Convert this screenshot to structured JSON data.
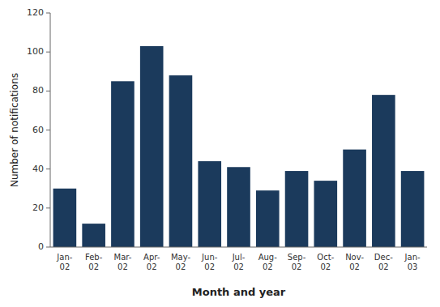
{
  "chart_data": {
    "type": "bar",
    "xlabel": "Month and year",
    "ylabel": "Number of notifications",
    "categories": [
      "Jan-\n02",
      "Feb-\n02",
      "Mar-\n02",
      "Apr-\n02",
      "May-\n02",
      "Jun-\n02",
      "Jul-\n02",
      "Aug-\n02",
      "Sep-\n02",
      "Oct-\n02",
      "Nov-\n02",
      "Dec-\n02",
      "Jan-\n03"
    ],
    "values": [
      30,
      12,
      85,
      103,
      88,
      44,
      41,
      29,
      39,
      34,
      50,
      78,
      39
    ],
    "color": "#1b3a5c",
    "ylim": [
      0,
      120
    ],
    "yticks": [
      0,
      20,
      40,
      60,
      80,
      100,
      120
    ],
    "grid": false
  }
}
